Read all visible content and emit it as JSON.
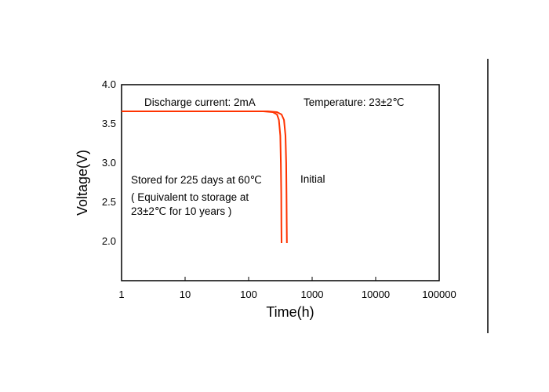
{
  "chart_data": {
    "type": "line",
    "title": "",
    "xlabel": "Time(h)",
    "ylabel": "Voltage(V)",
    "x_scale": "log",
    "xlim": [
      1,
      100000
    ],
    "ylim": [
      1.5,
      4.0
    ],
    "x_ticks": [
      "1",
      "10",
      "100",
      "1000",
      "10000",
      "100000"
    ],
    "y_ticks": [
      "2.0",
      "2.5",
      "3.0",
      "3.5",
      "4.0"
    ],
    "grid": false,
    "line_color": "#ff3300",
    "series": [
      {
        "name": "Initial",
        "x": [
          1,
          200,
          280,
          330,
          360,
          380,
          390,
          395,
          398,
          400
        ],
        "y": [
          3.66,
          3.66,
          3.65,
          3.62,
          3.55,
          3.35,
          3.0,
          2.6,
          2.2,
          1.98
        ]
      },
      {
        "name": "Stored for 225 days at 60℃",
        "x": [
          1,
          170,
          240,
          280,
          300,
          315,
          322,
          326,
          328,
          330
        ],
        "y": [
          3.66,
          3.66,
          3.65,
          3.62,
          3.55,
          3.35,
          3.0,
          2.6,
          2.2,
          1.98
        ]
      }
    ],
    "annotations": {
      "discharge": "Discharge current:  2mA",
      "temperature": "Temperature:  23±2℃",
      "stored_line1": "Stored for 225 days at 60℃",
      "stored_line2": "( Equivalent to storage at",
      "stored_line3": "23±2℃  for 10 years )",
      "initial": "Initial"
    }
  }
}
